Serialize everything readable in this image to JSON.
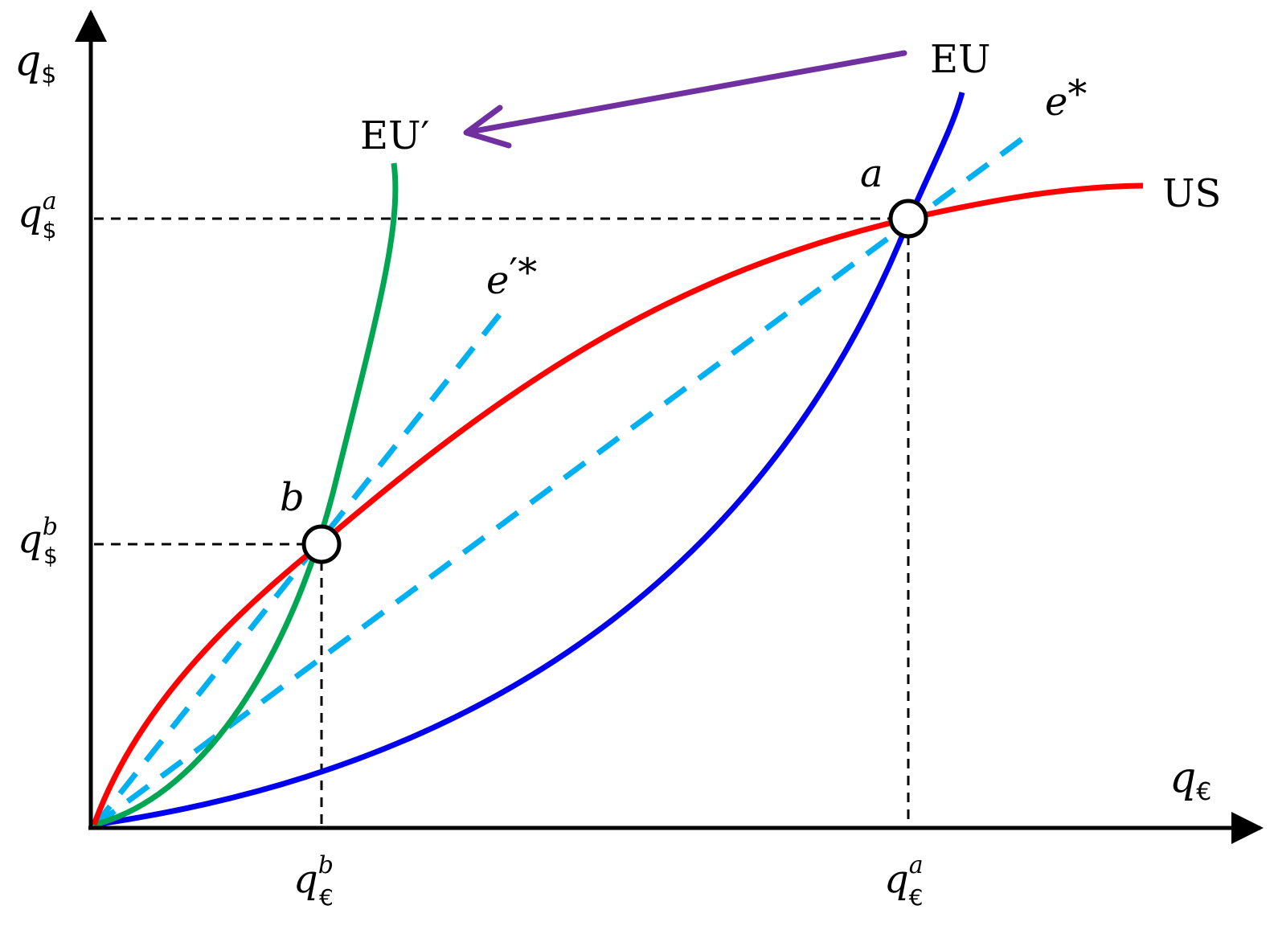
{
  "axes": {
    "y_symbol": "q",
    "y_subscript": "$",
    "x_symbol": "q",
    "x_subscript": "€"
  },
  "curves": {
    "eu_label": "EU",
    "eu_prime_label": "EU′",
    "us_label": "US",
    "e_star_symbol": "e",
    "e_star_suffix": "*",
    "e_prime_star_symbol": "e",
    "e_prime_star_suffix": "′*"
  },
  "points": {
    "a_label": "a",
    "b_label": "b"
  },
  "ticks": {
    "y_a_base": "q",
    "y_a_sup": "a",
    "y_a_sub": "$",
    "y_b_base": "q",
    "y_b_sup": "b",
    "y_b_sub": "$",
    "x_b_base": "q",
    "x_b_sup": "b",
    "x_b_sub": "€",
    "x_a_base": "q",
    "x_a_sup": "a",
    "x_a_sub": "€"
  },
  "colors": {
    "eu": "#0000ee",
    "eu_prime": "#00a651",
    "us": "#ff0000",
    "e_star": "#00b0f0",
    "shift_arrow": "#7030a0",
    "axes": "#000000"
  }
}
